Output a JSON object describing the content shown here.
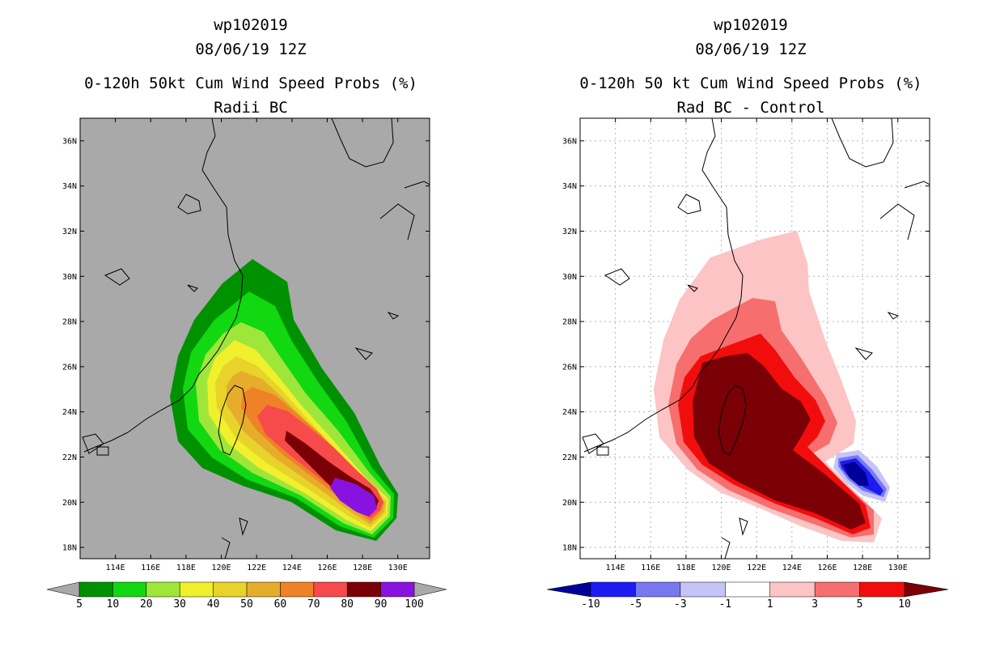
{
  "chart_data": [
    {
      "type": "heatmap",
      "title_lines": [
        "wp102019",
        "08/06/19 12Z",
        "0-120h 50kt Cum Wind Speed Probs (%)",
        "Radii BC"
      ],
      "x_ticks": [
        "114E",
        "116E",
        "118E",
        "120E",
        "122E",
        "124E",
        "126E",
        "128E",
        "130E"
      ],
      "y_ticks": [
        "18N",
        "20N",
        "22N",
        "24N",
        "26N",
        "28N",
        "30N",
        "32N",
        "34N",
        "36N"
      ],
      "xlim": [
        112.0,
        131.8
      ],
      "ylim": [
        17.5,
        37.0
      ],
      "background": "#a9a9a9",
      "colorbar": {
        "labels": [
          "5",
          "10",
          "20",
          "30",
          "40",
          "50",
          "60",
          "70",
          "80",
          "90",
          "100"
        ],
        "colors": [
          "#ffffff",
          "#009100",
          "#11d811",
          "#9fe63b",
          "#f0f02d",
          "#e8d32a",
          "#e5ad2b",
          "#ef8226",
          "#f74a4a",
          "#7a0006",
          "#8a12e0",
          "#ffffff"
        ],
        "end_color": "#a9a9a9"
      }
    },
    {
      "type": "heatmap",
      "title_lines": [
        "wp102019",
        "08/06/19 12Z",
        "0-120h 50 kt Cum Wind Speed Probs (%)",
        "Rad BC - Control"
      ],
      "x_ticks": [
        "114E",
        "116E",
        "118E",
        "120E",
        "122E",
        "124E",
        "126E",
        "128E",
        "130E"
      ],
      "y_ticks": [
        "18N",
        "20N",
        "22N",
        "24N",
        "26N",
        "28N",
        "30N",
        "32N",
        "34N",
        "36N"
      ],
      "xlim": [
        112.0,
        131.8
      ],
      "ylim": [
        17.5,
        37.0
      ],
      "background": "#ffffff",
      "colorbar": {
        "labels": [
          "-10",
          "-5",
          "-3",
          "-1",
          "1",
          "3",
          "5",
          "10"
        ],
        "colors": [
          "#000099",
          "#1c1cf2",
          "#7878f0",
          "#c4c4f8",
          "#ffffff",
          "#fcc4c4",
          "#f66e6e",
          "#f20d0d",
          "#7a0006"
        ]
      }
    }
  ]
}
